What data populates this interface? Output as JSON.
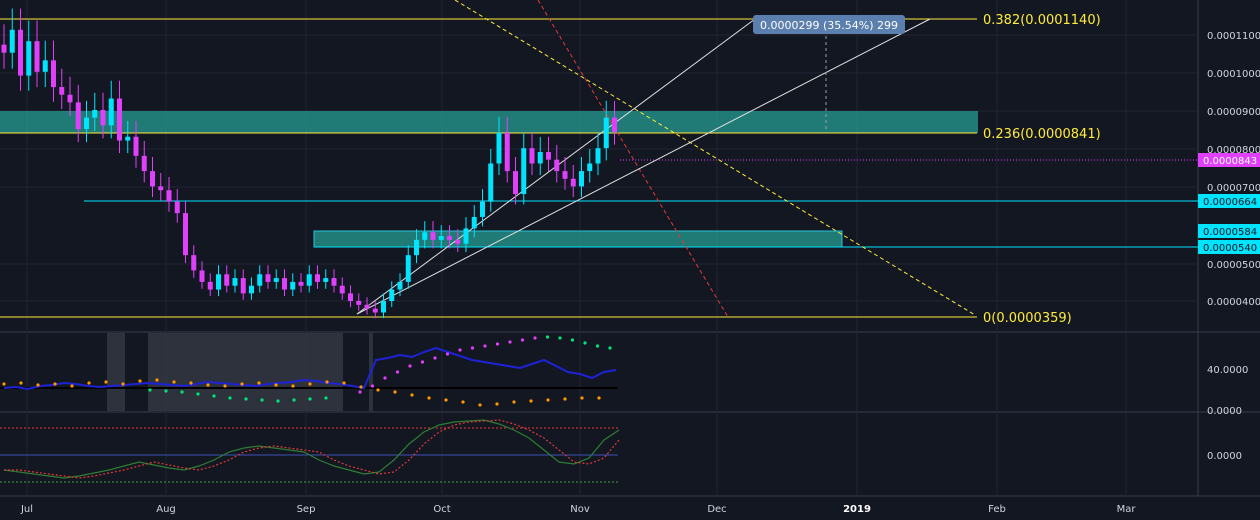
{
  "chart_data": {
    "type": "candlestick",
    "x_axis_labels": [
      "Jul",
      "Aug",
      "Sep",
      "Oct",
      "Nov",
      "Dec",
      "2019",
      "Feb",
      "Mar"
    ],
    "main_pane": {
      "y_ticks": [
        "0.0001100",
        "0.0001000",
        "0.0000900",
        "0.0000800",
        "0.0000700",
        "0.0000500",
        "0.0000400"
      ],
      "price_markers": [
        {
          "label": "0.0000843",
          "color": "#e040fb",
          "kind": "last-price"
        },
        {
          "label": "0.0000664",
          "color": "#00e5ff",
          "kind": "level"
        },
        {
          "label": "0.0000584",
          "color": "#00e5ff",
          "kind": "level"
        },
        {
          "label": "0.0000540",
          "color": "#00e5ff",
          "kind": "level"
        }
      ],
      "fib_levels": [
        {
          "label": "0.382(0.0001140)",
          "value": 0.000114
        },
        {
          "label": "0.236(0.0000841)",
          "value": 8.41e-05
        },
        {
          "label": "0(0.0000359)",
          "value": 3.59e-05
        }
      ],
      "measure_label": "0.0000299 (35.54%) 299",
      "candles_close": [
        0.000105,
        0.000111,
        9.9e-05,
        0.000108,
        0.0001,
        0.000103,
        9.6e-05,
        9.4e-05,
        9.2e-05,
        8.5e-05,
        8.8e-05,
        9e-05,
        8.6e-05,
        9.3e-05,
        8.2e-05,
        8.3e-05,
        7.8e-05,
        7.4e-05,
        7e-05,
        6.9e-05,
        6.6e-05,
        6.3e-05,
        5.2e-05,
        4.8e-05,
        4.5e-05,
        4.3e-05,
        4.7e-05,
        4.4e-05,
        4.6e-05,
        4.2e-05,
        4.4e-05,
        4.7e-05,
        4.5e-05,
        4.6e-05,
        4.3e-05,
        4.5e-05,
        4.4e-05,
        4.7e-05,
        4.5e-05,
        4.6e-05,
        4.4e-05,
        4.2e-05,
        4e-05,
        3.9e-05,
        3.8e-05,
        3.7e-05,
        4e-05,
        4.3e-05,
        4.5e-05,
        5.2e-05,
        5.6e-05,
        5.8e-05,
        5.6e-05,
        5.7e-05,
        5.6e-05,
        5.5e-05,
        5.9e-05,
        6.2e-05,
        6.6e-05,
        7.6e-05,
        8.4e-05,
        7.4e-05,
        6.8e-05,
        8e-05,
        7.6e-05,
        7.9e-05,
        7.7e-05,
        7.4e-05,
        7.2e-05,
        7e-05,
        7.4e-05,
        7.6e-05,
        8e-05,
        8.8e-05,
        8.43e-05
      ]
    },
    "indicator1": {
      "y_ticks": [
        "40.0000",
        "0.0000"
      ]
    },
    "indicator2": {
      "y_ticks": [
        "0.0000"
      ]
    }
  }
}
